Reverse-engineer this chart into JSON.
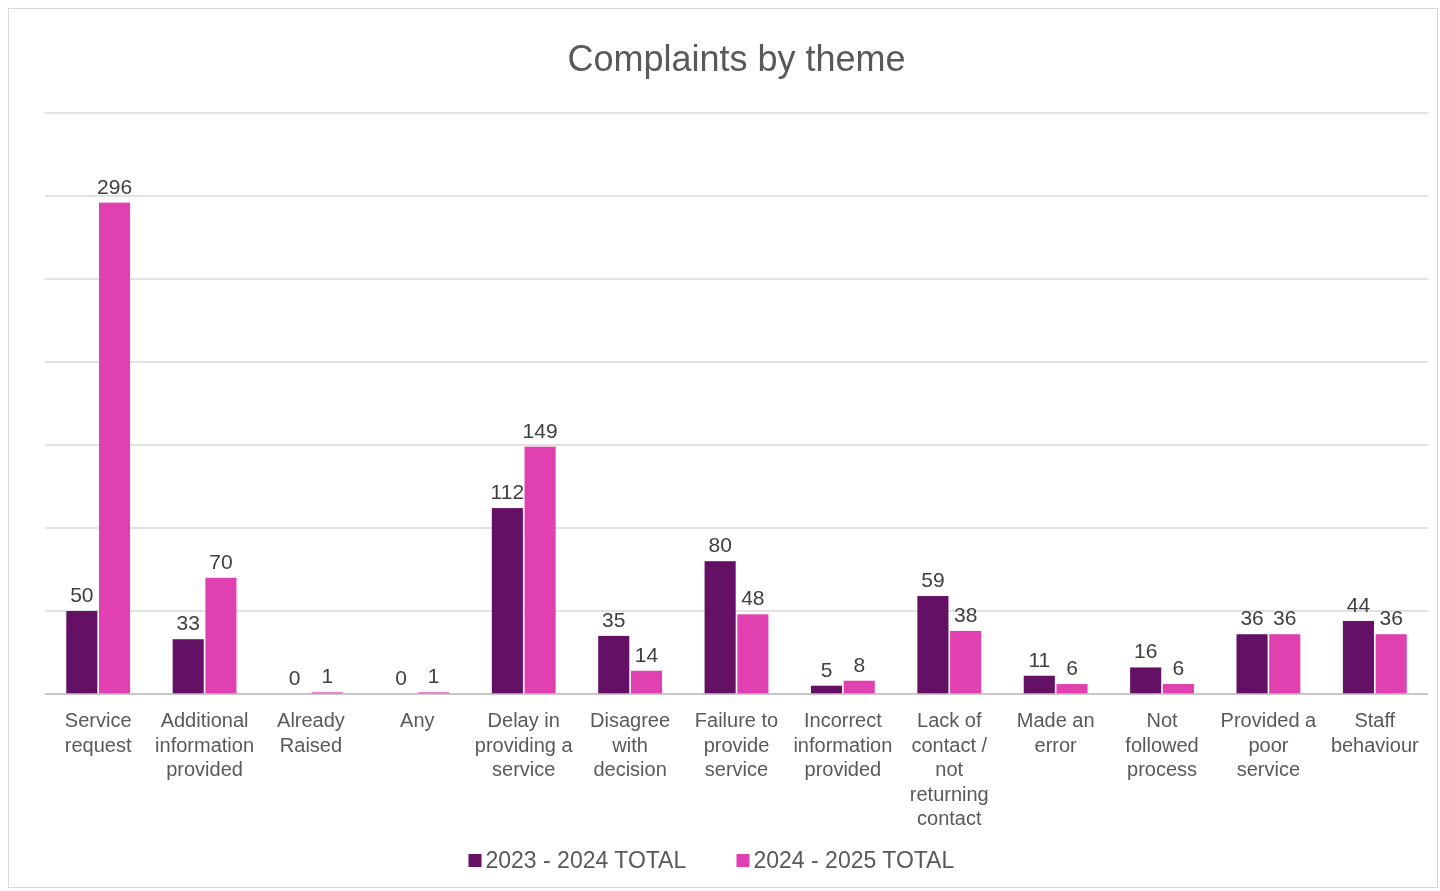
{
  "chart_data": {
    "type": "bar",
    "title": "Complaints by theme",
    "categories": [
      "Service request",
      "Additional information provided",
      "Already Raised",
      "Any",
      "Delay in providing a service",
      "Disagree with decision",
      "Failure to provide service",
      "Incorrect information provided",
      "Lack of contact / not returning contact",
      "Made an error",
      "Not followed process",
      "Provided a poor service",
      "Staff behaviour"
    ],
    "series": [
      {
        "name": "2023 - 2024 TOTAL",
        "color": "#641165",
        "values": [
          50,
          33,
          0,
          0,
          112,
          35,
          80,
          5,
          59,
          11,
          16,
          36,
          44
        ]
      },
      {
        "name": "2024 - 2025 TOTAL",
        "color": "#e040b0",
        "values": [
          296,
          70,
          1,
          1,
          149,
          14,
          48,
          8,
          38,
          6,
          6,
          36,
          36
        ]
      }
    ],
    "ylim": [
      0,
      350
    ],
    "yticks": [
      {
        "value": 0,
        "label": null
      },
      {
        "value": 50,
        "label": null
      },
      {
        "value": 100,
        "label": null
      },
      {
        "value": 150,
        "label": null
      },
      {
        "value": 200,
        "label": null
      },
      {
        "value": 250,
        "label": null
      },
      {
        "value": 300,
        "label": null
      },
      {
        "value": 350,
        "label": null
      }
    ],
    "tick_labels": "x",
    "grid": "y",
    "legend": "bottom",
    "data_labels": true
  }
}
